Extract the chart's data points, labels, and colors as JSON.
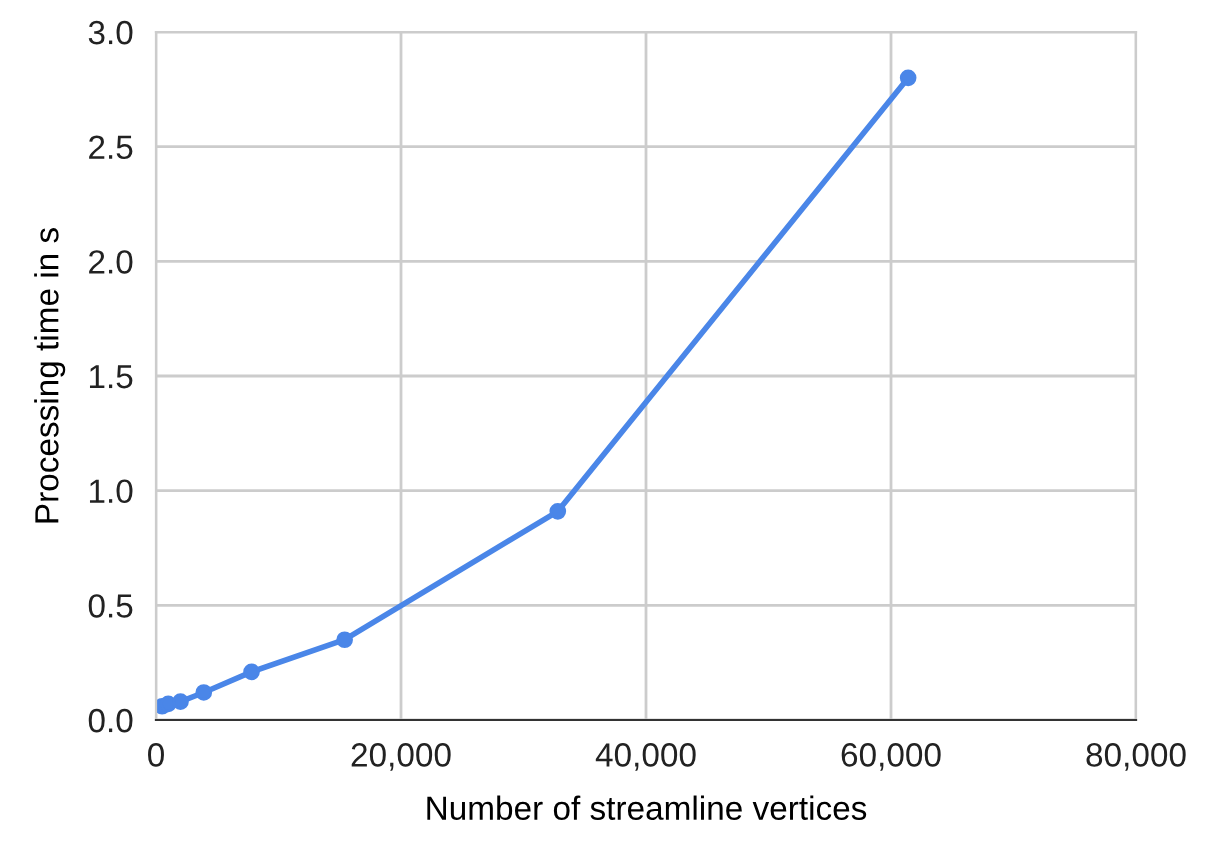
{
  "chart_data": {
    "type": "line",
    "xlabel": "Number of streamline vertices",
    "ylabel": "Processing time in s",
    "x": [
      500,
      1000,
      2000,
      3900,
      7800,
      15400,
      32800,
      61400
    ],
    "series": [
      {
        "color": "#4a86e8",
        "values": [
          0.06,
          0.07,
          0.08,
          0.12,
          0.21,
          0.35,
          0.91,
          2.8
        ]
      }
    ],
    "xlim": [
      0,
      80000
    ],
    "xticks": [
      {
        "value": 0,
        "label": "0"
      },
      {
        "value": 20000,
        "label": "20,000"
      },
      {
        "value": 40000,
        "label": "40,000"
      },
      {
        "value": 60000,
        "label": "60,000"
      },
      {
        "value": 80000,
        "label": "80,000"
      }
    ],
    "ylim": [
      0,
      3
    ],
    "yticks": [
      {
        "value": 0,
        "label": "0.0"
      },
      {
        "value": 0.5,
        "label": "0.5"
      },
      {
        "value": 1,
        "label": "1.0"
      },
      {
        "value": 1.5,
        "label": "1.5"
      },
      {
        "value": 2,
        "label": "2.0"
      },
      {
        "value": 2.5,
        "label": "2.5"
      },
      {
        "value": 3,
        "label": "3.0"
      }
    ],
    "grid": true,
    "marker": "circle",
    "line_style": "solid"
  }
}
